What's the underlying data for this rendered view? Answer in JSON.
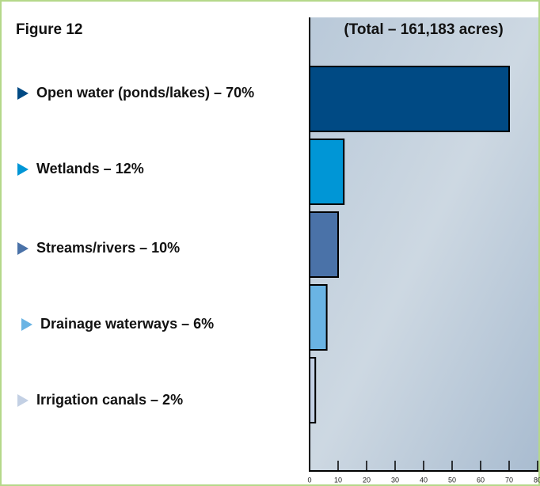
{
  "chart_data": {
    "type": "bar",
    "orientation": "horizontal",
    "title": "Figure 12",
    "subtitle": "(Total – 161,183 acres)",
    "categories": [
      "Open water (ponds/lakes) – 70%",
      "Wetlands – 12%",
      "Streams/rivers – 10%",
      "Drainage waterways – 6%",
      "Irrigation canals – 2%"
    ],
    "values": [
      70,
      12,
      10,
      6,
      2
    ],
    "colors": [
      "#004a84",
      "#0096d6",
      "#4a72a8",
      "#6ab4e4",
      "#c3d0e4"
    ],
    "xlim": [
      0,
      80
    ],
    "xticks": [
      0,
      10,
      20,
      30,
      40,
      50,
      60,
      70,
      80
    ],
    "grid": false
  }
}
